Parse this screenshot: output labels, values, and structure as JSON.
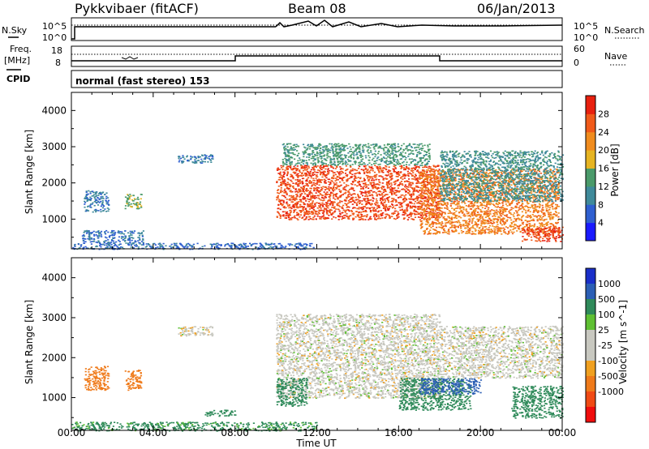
{
  "header": {
    "station": "Pykkvibaer (fitACF)",
    "beam": "Beam 08",
    "date": "06/Jan/2013"
  },
  "panels_top": {
    "nsky_label": "N.Sky",
    "nsearch_label": "N.Search",
    "noise_ticks_left": [
      "10^5",
      "10^0"
    ],
    "noise_ticks_right": [
      "10^5",
      "10^0"
    ],
    "freq_label_line1": "Freq.",
    "freq_label_line2": "[MHz]",
    "freq_ticks_left": [
      "18",
      "8"
    ],
    "nave_label": "Nave",
    "nave_ticks_right": [
      "60",
      "0"
    ],
    "cpid_label": "CPID",
    "cpid_text": "normal (fast stereo) 153"
  },
  "colors": {
    "power_scale": [
      "#1a1aff",
      "#2f5fd0",
      "#3f8a9a",
      "#4a9a6a",
      "#e6b422",
      "#f08c1e",
      "#f05a1a",
      "#e8200f"
    ],
    "velocity_scale": [
      "#f00d0d",
      "#f04a14",
      "#ef7a1a",
      "#f0a020",
      "#c8c8c0",
      "#c8c8c0",
      "#5fc033",
      "#2f8a5a",
      "#2c5fb5",
      "#1a2fc9"
    ]
  },
  "chart_data": [
    {
      "type": "heatmap",
      "title": "",
      "xlabel": "Time UT",
      "ylabel": "Slant Range [km]",
      "x_ticks": [
        "00:00",
        "04:00",
        "08:00",
        "12:00",
        "16:00",
        "20:00",
        "00:00"
      ],
      "x_range_hours": [
        0,
        24
      ],
      "y_ticks": [
        1000,
        2000,
        3000,
        4000
      ],
      "ylim": [
        180,
        4500
      ],
      "colorbar_label": "Power [dB]",
      "colorbar_ticks": [
        4,
        8,
        12,
        16,
        20,
        24,
        28
      ],
      "colorbar_range": [
        0,
        32
      ],
      "regions": [
        {
          "t": [
            0.6,
            1.8
          ],
          "r": [
            1200,
            1800
          ],
          "value": 9
        },
        {
          "t": [
            2.6,
            3.4
          ],
          "r": [
            1300,
            1700
          ],
          "value": 15
        },
        {
          "t": [
            5.2,
            6.9
          ],
          "r": [
            2550,
            2800
          ],
          "value": 9
        },
        {
          "t": [
            0.5,
            3.5
          ],
          "r": [
            350,
            700
          ],
          "value": 8
        },
        {
          "t": [
            10.0,
            18.0
          ],
          "r": [
            1000,
            2500
          ],
          "value": 27
        },
        {
          "t": [
            10.3,
            17.5
          ],
          "r": [
            2500,
            3100
          ],
          "value": 13
        },
        {
          "t": [
            17.0,
            23.8
          ],
          "r": [
            600,
            2400
          ],
          "value": 23
        },
        {
          "t": [
            18.0,
            24.0
          ],
          "r": [
            1500,
            2900
          ],
          "value": 11
        },
        {
          "t": [
            22.0,
            24.0
          ],
          "r": [
            400,
            800
          ],
          "value": 28
        },
        {
          "t": [
            0,
            12
          ],
          "r": [
            180,
            350
          ],
          "value": 7
        }
      ]
    },
    {
      "type": "heatmap",
      "title": "",
      "xlabel": "Time UT",
      "ylabel": "Slant Range [km]",
      "x_ticks": [
        "00:00",
        "04:00",
        "08:00",
        "12:00",
        "16:00",
        "20:00",
        "00:00"
      ],
      "x_range_hours": [
        0,
        24
      ],
      "y_ticks": [
        1000,
        2000,
        3000,
        4000
      ],
      "ylim": [
        180,
        4500
      ],
      "colorbar_label": "Velocity [m s^-1]",
      "colorbar_ticks": [
        "1000",
        "500",
        "100",
        "25",
        "-25",
        "-100",
        "-500",
        "-1000"
      ],
      "regions": [
        {
          "t": [
            0.6,
            1.8
          ],
          "r": [
            1200,
            1800
          ],
          "value": -300
        },
        {
          "t": [
            2.6,
            3.4
          ],
          "r": [
            1200,
            1700
          ],
          "value": -300
        },
        {
          "t": [
            5.2,
            6.9
          ],
          "r": [
            2550,
            2800
          ],
          "value": 0
        },
        {
          "t": [
            6.5,
            8.0
          ],
          "r": [
            550,
            700
          ],
          "value": 150
        },
        {
          "t": [
            10.0,
            18.0
          ],
          "r": [
            1000,
            3100
          ],
          "value": 0
        },
        {
          "t": [
            10.0,
            11.5
          ],
          "r": [
            800,
            1500
          ],
          "value": 150
        },
        {
          "t": [
            16.0,
            19.5
          ],
          "r": [
            700,
            1500
          ],
          "value": 300
        },
        {
          "t": [
            17.0,
            20.0
          ],
          "r": [
            1100,
            1500
          ],
          "value": 900
        },
        {
          "t": [
            18.0,
            24.0
          ],
          "r": [
            1500,
            2800
          ],
          "value": 0
        },
        {
          "t": [
            21.5,
            24.0
          ],
          "r": [
            500,
            1300
          ],
          "value": 300
        },
        {
          "t": [
            0,
            12
          ],
          "r": [
            180,
            400
          ],
          "value": 120
        }
      ]
    }
  ]
}
